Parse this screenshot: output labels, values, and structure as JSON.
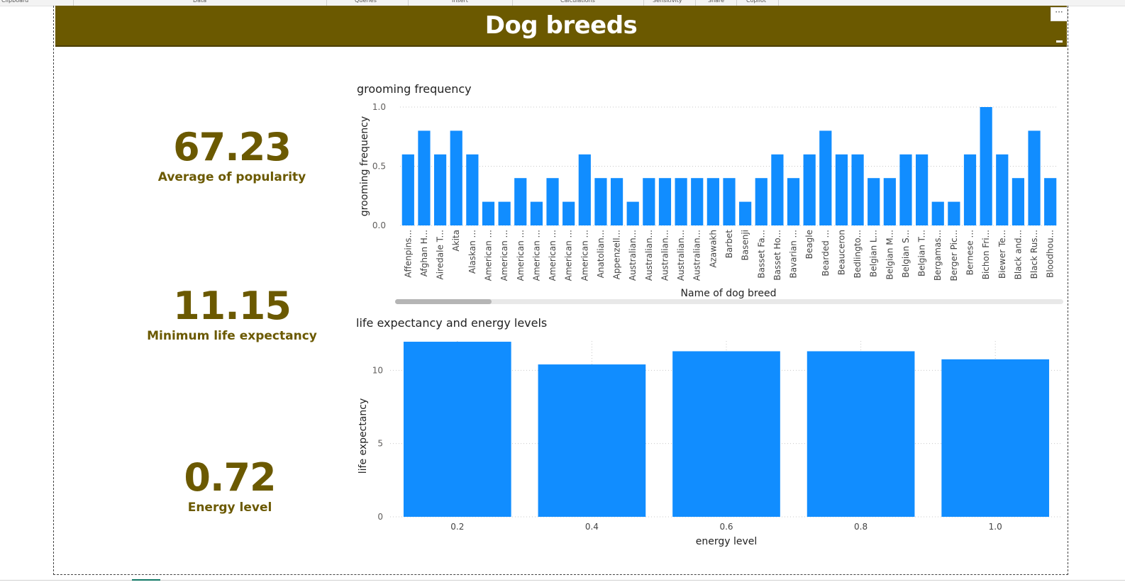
{
  "ribbon": {
    "groups": [
      "Clipboard",
      "Data",
      "Queries",
      "Insert",
      "Calculations",
      "Sensitivity",
      "Share",
      "Copilot"
    ]
  },
  "report": {
    "title": "Dog breeds",
    "more_options_icon": "ellipsis-icon"
  },
  "kpis": [
    {
      "value": "67.23",
      "label": "Average of popularity"
    },
    {
      "value": "11.15",
      "label": "Minimum life expectancy"
    },
    {
      "value": "0.72",
      "label": "Energy level"
    }
  ],
  "colors": {
    "banner": "#6b5900",
    "kpi_text": "#6b5900",
    "bar": "#118dff",
    "grid": "#c8c8c8",
    "scrollbar_thumb": "#b5b5b5",
    "scrollbar_track": "#e8e8e8"
  },
  "chart_data": [
    {
      "type": "bar",
      "title": "grooming frequency",
      "xlabel": "Name of dog breed",
      "ylabel": "grooming frequency",
      "ylim": [
        0,
        1.0
      ],
      "yticks": [
        "0.0",
        "0.5",
        "1.0"
      ],
      "grid": true,
      "categories": [
        "Affenpins...",
        "Afghan H...",
        "Airedale T...",
        "Akita",
        "Alaskan ...",
        "American ...",
        "American ...",
        "American ...",
        "American ...",
        "American ...",
        "American ...",
        "American ...",
        "Anatolian...",
        "Appenzell...",
        "Australian...",
        "Australian...",
        "Australian...",
        "Australian...",
        "Australian...",
        "Azawakh",
        "Barbet",
        "Basenji",
        "Basset Fa...",
        "Basset Ho...",
        "Bavarian ...",
        "Beagle",
        "Bearded ...",
        "Beauceron",
        "Bedlingto...",
        "Belgian L...",
        "Belgian M...",
        "Belgian S...",
        "Belgian T...",
        "Bergamas...",
        "Berger Pic...",
        "Bernese ...",
        "Bichon Fri...",
        "Biewer Te...",
        "Black and...",
        "Black Rus...",
        "Bloodhou..."
      ],
      "values": [
        0.6,
        0.8,
        0.6,
        0.8,
        0.6,
        0.2,
        0.2,
        0.4,
        0.2,
        0.4,
        0.2,
        0.6,
        0.4,
        0.4,
        0.2,
        0.4,
        0.4,
        0.4,
        0.4,
        0.4,
        0.4,
        0.2,
        0.4,
        0.6,
        0.4,
        0.6,
        0.8,
        0.6,
        0.6,
        0.4,
        0.4,
        0.6,
        0.6,
        0.2,
        0.2,
        0.6,
        1.0,
        0.6,
        0.4,
        0.8,
        0.4
      ]
    },
    {
      "type": "bar",
      "title": "life expectancy and energy levels",
      "xlabel": "energy level",
      "ylabel": "life expectancy",
      "ylim": [
        0,
        12
      ],
      "yticks": [
        "0",
        "5",
        "10"
      ],
      "grid": true,
      "categories": [
        "0.2",
        "0.4",
        "0.6",
        "0.8",
        "1.0"
      ],
      "values": [
        11.95,
        10.4,
        11.3,
        11.3,
        10.75
      ]
    }
  ]
}
